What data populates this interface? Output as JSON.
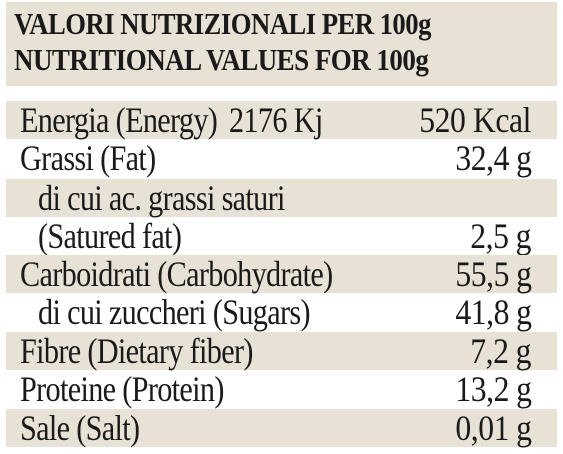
{
  "header": {
    "line1": "VALORI NUTRIZIONALI PER 100g",
    "line2": "NUTRITIONAL VALUES FOR 100g"
  },
  "rows": {
    "energy": {
      "label": "Energia (Energy)",
      "kj": "2176 Kj",
      "kcal": "520 Kcal"
    },
    "fat": {
      "label": "Grassi (Fat)",
      "value": "32,4",
      "unit": "g"
    },
    "saturated_it": {
      "label": "di cui ac. grassi saturi"
    },
    "saturated_en": {
      "label": "(Satured fat)",
      "value": "2,5",
      "unit": "g"
    },
    "carbohydrate": {
      "label": "Carboidrati (Carbohydrate)",
      "value": "55,5",
      "unit": "g"
    },
    "sugars": {
      "label": "di cui zuccheri (Sugars)",
      "value": "41,8",
      "unit": "g"
    },
    "fiber": {
      "label": "Fibre (Dietary fiber)",
      "value": "7,2",
      "unit": "g"
    },
    "protein": {
      "label": "Proteine (Protein)",
      "value": "13,2",
      "unit": "g"
    },
    "salt": {
      "label": "Sale (Salt)",
      "value": "0,01",
      "unit": "g"
    }
  },
  "colors": {
    "shade": "#e8e2d6",
    "text": "#1a1a1a"
  }
}
